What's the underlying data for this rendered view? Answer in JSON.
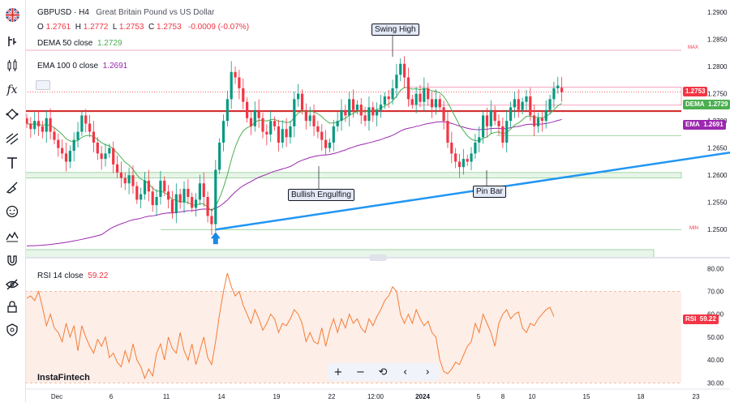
{
  "legend": {
    "symbol": "GBPUSD · H4",
    "description": "Great Britain Pound vs US Dollar",
    "o_label": "O",
    "o": "1.2761",
    "h_label": "H",
    "h": "1.2772",
    "l_label": "L",
    "l": "1.2753",
    "c_label": "C",
    "c": "1.2753",
    "change": "-0.0009 (-0.07%)",
    "dema_label": "DEMA 50 close",
    "dema": "1.2729",
    "ema_label": "EMA 100 0 close",
    "ema": "1.2691",
    "rsi_label": "RSI 14 close",
    "rsi": "59.22"
  },
  "annotations": {
    "swing_high": "Swing High",
    "bullish_engulfing": "Bullish Engulfing",
    "pin_bar": "Pin Bar",
    "max": "MAX",
    "min": "MIN"
  },
  "price_tags": {
    "price": "1.2753",
    "dema_name": "DEMA",
    "dema": "1.2729",
    "ema_name": "EMA",
    "ema": "1.2691",
    "rsi_name": "RSI",
    "rsi": "59.22"
  },
  "watermark": "InstaFintech",
  "navbar": {
    "zoom_in": "+",
    "zoom_out": "−",
    "reset": "⟲",
    "back": "‹",
    "forward": "›"
  },
  "colors": {
    "up": "#089981",
    "down": "#f23645",
    "dema": "#4caf50",
    "ema": "#9c27b0",
    "trend": "#2196f3",
    "rsi": "#f57c36"
  },
  "chart_data": [
    {
      "type": "candlestick",
      "title": "GBPUSD · H4",
      "x_tick_labels": [
        "Dec",
        "6",
        "11",
        "14",
        "19",
        "22",
        "12:00",
        "2024",
        "5",
        "8",
        "10",
        "15",
        "18",
        "23"
      ],
      "y_tick_labels": [
        "1.2900",
        "1.2850",
        "1.2800",
        "1.2750",
        "1.2700",
        "1.2650",
        "1.2600",
        "1.2550",
        "1.2500"
      ],
      "ylim": [
        1.2475,
        1.2915
      ],
      "close": [
        1.2695,
        1.2685,
        1.27,
        1.269,
        1.268,
        1.2705,
        1.268,
        1.2665,
        1.265,
        1.264,
        1.2625,
        1.2645,
        1.2665,
        1.268,
        1.271,
        1.2695,
        1.268,
        1.266,
        1.264,
        1.263,
        1.264,
        1.265,
        1.262,
        1.2605,
        1.2595,
        1.2585,
        1.26,
        1.258,
        1.2555,
        1.2565,
        1.259,
        1.257,
        1.2545,
        1.256,
        1.259,
        1.257,
        1.2555,
        1.253,
        1.2565,
        1.255,
        1.2575,
        1.256,
        1.254,
        1.2555,
        1.2585,
        1.256,
        1.2525,
        1.251,
        1.261,
        1.266,
        1.27,
        1.274,
        1.279,
        1.278,
        1.276,
        1.2735,
        1.2705,
        1.269,
        1.272,
        1.2705,
        1.268,
        1.2675,
        1.27,
        1.269,
        1.266,
        1.2685,
        1.267,
        1.269,
        1.274,
        1.275,
        1.272,
        1.27,
        1.271,
        1.269,
        1.268,
        1.2665,
        1.265,
        1.266,
        1.269,
        1.27,
        1.272,
        1.271,
        1.274,
        1.272,
        1.273,
        1.271,
        1.27,
        1.2725,
        1.271,
        1.272,
        1.273,
        1.2745,
        1.274,
        1.276,
        1.2785,
        1.2805,
        1.278,
        1.274,
        1.273,
        1.275,
        1.2735,
        1.276,
        1.274,
        1.2725,
        1.274,
        1.2725,
        1.27,
        1.266,
        1.264,
        1.2625,
        1.2615,
        1.263,
        1.2625,
        1.264,
        1.266,
        1.267,
        1.271,
        1.269,
        1.272,
        1.27,
        1.269,
        1.266,
        1.27,
        1.2725,
        1.274,
        1.272,
        1.2735,
        1.2745,
        1.271,
        1.269,
        1.2705,
        1.27,
        1.272,
        1.274,
        1.276,
        1.2765,
        1.2753
      ],
      "open": [
        1.2705,
        1.2695,
        1.2685,
        1.27,
        1.269,
        1.268,
        1.2705,
        1.268,
        1.2665,
        1.265,
        1.264,
        1.2625,
        1.2645,
        1.2665,
        1.268,
        1.271,
        1.2695,
        1.268,
        1.266,
        1.264,
        1.263,
        1.264,
        1.265,
        1.262,
        1.2605,
        1.2595,
        1.2585,
        1.26,
        1.258,
        1.2555,
        1.2565,
        1.259,
        1.257,
        1.2545,
        1.256,
        1.259,
        1.257,
        1.2555,
        1.253,
        1.2565,
        1.255,
        1.2575,
        1.256,
        1.254,
        1.2555,
        1.2585,
        1.256,
        1.2525,
        1.251,
        1.261,
        1.266,
        1.27,
        1.274,
        1.279,
        1.278,
        1.276,
        1.2735,
        1.2705,
        1.269,
        1.272,
        1.2705,
        1.268,
        1.2675,
        1.27,
        1.269,
        1.266,
        1.2685,
        1.267,
        1.269,
        1.274,
        1.275,
        1.272,
        1.27,
        1.271,
        1.269,
        1.268,
        1.2665,
        1.265,
        1.266,
        1.269,
        1.27,
        1.272,
        1.271,
        1.274,
        1.272,
        1.273,
        1.271,
        1.27,
        1.2725,
        1.271,
        1.272,
        1.273,
        1.2745,
        1.274,
        1.276,
        1.2785,
        1.2805,
        1.278,
        1.274,
        1.273,
        1.275,
        1.2735,
        1.276,
        1.274,
        1.2725,
        1.274,
        1.2725,
        1.27,
        1.266,
        1.264,
        1.2625,
        1.2615,
        1.263,
        1.2625,
        1.264,
        1.266,
        1.267,
        1.271,
        1.269,
        1.272,
        1.27,
        1.269,
        1.266,
        1.27,
        1.2725,
        1.274,
        1.272,
        1.2735,
        1.2745,
        1.271,
        1.269,
        1.2705,
        1.27,
        1.272,
        1.274,
        1.276,
        1.2761
      ],
      "last_ohlc": {
        "open": 1.2761,
        "high": 1.2772,
        "low": 1.2753,
        "close": 1.2753
      },
      "series": [
        {
          "name": "DEMA 50 close",
          "last": 1.2729
        },
        {
          "name": "EMA 100 0 close",
          "last": 1.2691
        }
      ],
      "levels": [
        1.2753,
        1.2729,
        1.2673,
        1.2605,
        1.2595,
        1.25,
        1.283,
        1.2762
      ],
      "trendline": {
        "from": [
          48,
          1.25
        ],
        "to": [
          150,
          1.2678
        ]
      }
    },
    {
      "type": "line",
      "title": "RSI 14 close",
      "y_tick_labels": [
        "80.00",
        "70.00",
        "60.00",
        "50.00",
        "40.00",
        "30.00"
      ],
      "ylim": [
        28,
        84
      ],
      "bands": [
        30,
        70
      ],
      "values": [
        67,
        68,
        66,
        70,
        63,
        55,
        60,
        54,
        52,
        48,
        56,
        50,
        55,
        44,
        55,
        50,
        46,
        43,
        49,
        46,
        50,
        41,
        43,
        39,
        37,
        44,
        39,
        47,
        40,
        37,
        32,
        36,
        33,
        43,
        47,
        40,
        50,
        45,
        43,
        52,
        44,
        40,
        47,
        38,
        44,
        50,
        41,
        38,
        48,
        60,
        70,
        78,
        72,
        68,
        70,
        64,
        60,
        56,
        62,
        58,
        53,
        56,
        60,
        58,
        52,
        56,
        55,
        58,
        62,
        60,
        56,
        48,
        52,
        48,
        47,
        54,
        46,
        53,
        58,
        52,
        58,
        54,
        60,
        56,
        58,
        54,
        52,
        58,
        55,
        59,
        62,
        66,
        68,
        72,
        70,
        60,
        56,
        60,
        56,
        62,
        58,
        55,
        57,
        52,
        50,
        40,
        35,
        34,
        36,
        39,
        38,
        42,
        46,
        48,
        56,
        52,
        60,
        56,
        52,
        46,
        56,
        60,
        62,
        58,
        60,
        61,
        54,
        52,
        56,
        55,
        58,
        60,
        62,
        63,
        59
      ]
    }
  ]
}
